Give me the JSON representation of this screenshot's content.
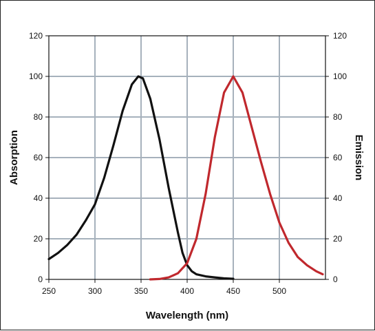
{
  "chart_data": {
    "type": "line",
    "title": "",
    "xlabel": "Wavelength (nm)",
    "ylabel_left": "Absorption",
    "ylabel_right": "Emission",
    "xlim": [
      250,
      550
    ],
    "ylim": [
      0,
      120
    ],
    "x_ticks": [
      "250",
      "300",
      "350",
      "400",
      "450",
      "500"
    ],
    "y_ticks": [
      "0",
      "20",
      "40",
      "60",
      "80",
      "100",
      "120"
    ],
    "grid": true,
    "legend": "none",
    "series": [
      {
        "axis": "left",
        "color": "#111111",
        "points": [
          [
            250,
            10
          ],
          [
            260,
            13
          ],
          [
            270,
            17
          ],
          [
            280,
            22
          ],
          [
            290,
            29
          ],
          [
            300,
            37
          ],
          [
            310,
            50
          ],
          [
            320,
            66
          ],
          [
            330,
            83
          ],
          [
            340,
            96
          ],
          [
            347,
            100
          ],
          [
            352,
            99
          ],
          [
            360,
            89
          ],
          [
            370,
            69
          ],
          [
            380,
            45
          ],
          [
            390,
            23
          ],
          [
            395,
            13
          ],
          [
            400,
            7
          ],
          [
            405,
            4
          ],
          [
            410,
            2.5
          ],
          [
            420,
            1.5
          ],
          [
            430,
            1
          ],
          [
            440,
            0.5
          ],
          [
            450,
            0.3
          ]
        ]
      },
      {
        "axis": "right",
        "color": "#c0282d",
        "points": [
          [
            360,
            0
          ],
          [
            370,
            0.2
          ],
          [
            380,
            1
          ],
          [
            390,
            3
          ],
          [
            400,
            8
          ],
          [
            410,
            20
          ],
          [
            420,
            42
          ],
          [
            430,
            70
          ],
          [
            440,
            92
          ],
          [
            450,
            100
          ],
          [
            460,
            92
          ],
          [
            470,
            75
          ],
          [
            480,
            58
          ],
          [
            490,
            42
          ],
          [
            500,
            28
          ],
          [
            510,
            18
          ],
          [
            520,
            11
          ],
          [
            530,
            7
          ],
          [
            540,
            4
          ],
          [
            547,
            2.5
          ]
        ]
      }
    ]
  }
}
